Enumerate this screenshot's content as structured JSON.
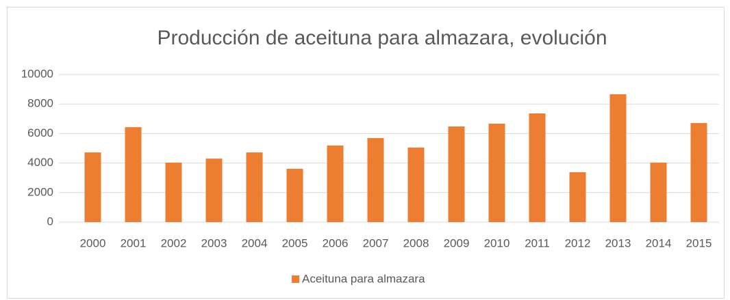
{
  "chart_data": {
    "type": "bar",
    "title": "Producción de aceituna para almazara, evolución",
    "categories": [
      "2000",
      "2001",
      "2002",
      "2003",
      "2004",
      "2005",
      "2006",
      "2007",
      "2008",
      "2009",
      "2010",
      "2011",
      "2012",
      "2013",
      "2014",
      "2015"
    ],
    "series": [
      {
        "name": "Aceituna para almazara",
        "color": "#ed7d31",
        "values": [
          4720,
          6430,
          4030,
          4300,
          4720,
          3610,
          5190,
          5690,
          5050,
          6480,
          6670,
          7360,
          3380,
          8660,
          4030,
          6710
        ]
      }
    ],
    "ylim": [
      0,
      10000
    ],
    "yticks": [
      0,
      2000,
      4000,
      6000,
      8000,
      10000
    ],
    "grid": true,
    "legend": "bottom"
  }
}
